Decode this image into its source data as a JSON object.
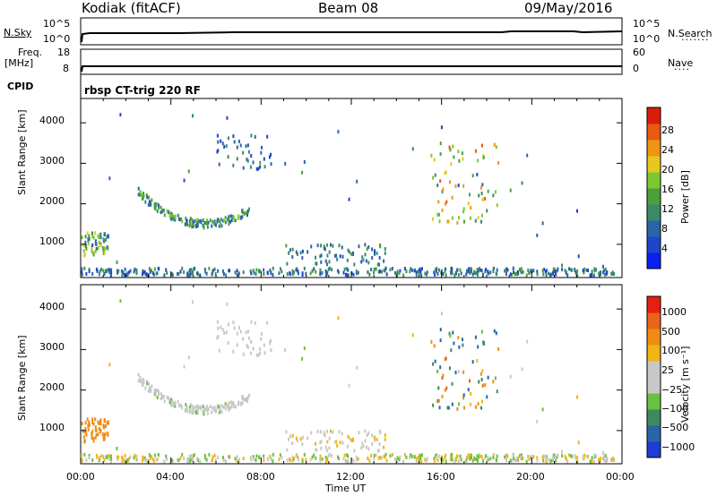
{
  "header": {
    "station": "Kodiak (fitACF)",
    "beam": "Beam 08",
    "date": "09/May/2016"
  },
  "top_panels": {
    "nsky_label": "N.Sky",
    "nsearch_label": "N.Search",
    "nsky_ticks": [
      "10^5",
      "10^0"
    ],
    "nsearch_ticks": [
      "10^5",
      "10^0"
    ],
    "freq_label": "Freq.",
    "freq_unit": "[MHz]",
    "freq_ticks": [
      "18",
      "8"
    ],
    "nave_label": "Nave",
    "nave_ticks": [
      "60",
      "0"
    ],
    "cpid_label": "CPID",
    "cpid_text": "rbsp CT-trig 220 RF"
  },
  "chart_data": [
    {
      "type": "heatmap",
      "name": "power",
      "ylabel": "Slant Range [km]",
      "xlabel": "Time UT",
      "xlim": [
        0,
        24
      ],
      "ylim": [
        180,
        4600
      ],
      "y_ticks": [
        "4000",
        "3000",
        "2000",
        "1000"
      ],
      "x_ticks": [
        "00:00",
        "04:00",
        "08:00",
        "12:00",
        "16:00",
        "20:00",
        "00:00"
      ],
      "colorbar": {
        "label": "Power [dB]",
        "range": [
          0,
          32
        ],
        "ticks": [
          "28",
          "24",
          "20",
          "16",
          "12",
          "8",
          "4"
        ],
        "colors": [
          "#0a1ff0",
          "#1e46c8",
          "#2c64a8",
          "#3a8a6a",
          "#4aa03a",
          "#7cc832",
          "#e6c81e",
          "#f09614",
          "#e85a10",
          "#d81e0a"
        ]
      }
    },
    {
      "type": "heatmap",
      "name": "velocity",
      "ylabel": "Slant Range [km]",
      "xlabel": "Time UT",
      "xlim": [
        0,
        24
      ],
      "ylim": [
        180,
        4600
      ],
      "y_ticks": [
        "4000",
        "3000",
        "2000",
        "1000"
      ],
      "x_ticks": [
        "00:00",
        "04:00",
        "08:00",
        "12:00",
        "16:00",
        "20:00",
        "00:00"
      ],
      "colorbar": {
        "label": "Velocity [m s⁻¹]",
        "ticks": [
          "1000",
          "500",
          "100",
          "25",
          "−25",
          "−100",
          "−500",
          "−1000"
        ],
        "colors": [
          "#1e3cd2",
          "#2a64a8",
          "#3c8a60",
          "#6cc040",
          "#c8c8c8",
          "#c8c8c8",
          "#f0b414",
          "#f08c14",
          "#e8641a",
          "#e81e10"
        ]
      }
    }
  ],
  "time_label": "Time UT"
}
